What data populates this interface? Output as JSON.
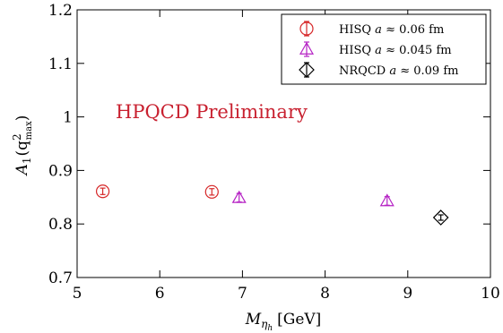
{
  "chart_data": {
    "type": "scatter",
    "title": "",
    "xlabel": "M",
    "xlabel_sub": "η",
    "xlabel_subsub": "h",
    "xlabel_unit": "[GeV]",
    "ylabel": "A",
    "ylabel_sub": "1",
    "ylabel_arg_open": "(q",
    "ylabel_arg_sup": "2",
    "ylabel_arg_sub": "max",
    "ylabel_arg_close": ")",
    "xlim": [
      5,
      10
    ],
    "ylim": [
      0.7,
      1.2
    ],
    "xticks": [
      5,
      6,
      7,
      8,
      9,
      10
    ],
    "xtick_labels": [
      "5",
      "6",
      "7",
      "8",
      "9",
      "10"
    ],
    "yticks": [
      0.7,
      0.8,
      0.9,
      1.0,
      1.1,
      1.2
    ],
    "ytick_labels": [
      "0.7",
      "0.8",
      "0.9",
      "1",
      "1.1",
      "1.2"
    ],
    "grid": false,
    "legend_position": "top-right",
    "annotation": {
      "text": "HPQCD Preliminary",
      "color": "#c8202f"
    },
    "series": [
      {
        "legend_prefix": "HISQ ",
        "legend_a": "a",
        "legend_suffix": " ≈ 0.06 fm",
        "marker": "circle",
        "color": "#d62728",
        "points": [
          {
            "x": 5.31,
            "y": 0.861,
            "err": 0.006
          },
          {
            "x": 6.63,
            "y": 0.86,
            "err": 0.006
          }
        ]
      },
      {
        "legend_prefix": "HISQ ",
        "legend_a": "a",
        "legend_suffix": " ≈ 0.045 fm",
        "marker": "triangle",
        "color": "#b521c4",
        "points": [
          {
            "x": 6.96,
            "y": 0.849,
            "err": 0.008
          },
          {
            "x": 8.75,
            "y": 0.843,
            "err": 0.008
          }
        ]
      },
      {
        "legend_prefix": "NRQCD ",
        "legend_a": "a",
        "legend_suffix": " ≈ 0.09 fm",
        "marker": "diamond",
        "color": "#000000",
        "points": [
          {
            "x": 9.4,
            "y": 0.812,
            "err": 0.005
          }
        ]
      }
    ]
  }
}
